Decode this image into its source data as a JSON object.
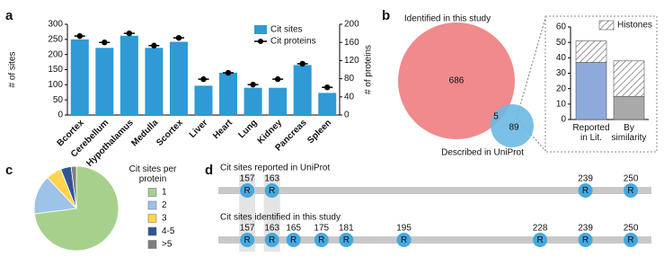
{
  "panels": [
    "a",
    "b",
    "c",
    "d"
  ],
  "chart_data": [
    {
      "type": "bar",
      "categories": [
        "Bcortex",
        "Cerebellum",
        "Hypothalamus",
        "Medulla",
        "Scortex",
        "Liver",
        "Heart",
        "Lung",
        "Kidney",
        "Pancreas",
        "Spleen"
      ],
      "series": [
        {
          "name": "Cit sites",
          "color": "#2f9ad6",
          "values": [
            250,
            222,
            262,
            222,
            242,
            97,
            140,
            90,
            90,
            165,
            73
          ]
        },
        {
          "name": "Cit proteins",
          "color": "#000000",
          "style": "dot",
          "axis": "y2",
          "values": [
            174,
            160,
            180,
            153,
            170,
            79,
            93,
            67,
            79,
            113,
            61
          ]
        }
      ],
      "ylabel": "# of sites",
      "y2label": "# of proteins",
      "ylim": [
        0,
        300
      ],
      "yticks": [
        0,
        50,
        100,
        150,
        200,
        250,
        300
      ],
      "y2lim": [
        0,
        200
      ],
      "y2ticks": [
        0,
        40,
        80,
        120,
        160,
        200
      ]
    },
    {
      "type": "venn",
      "sets": [
        {
          "name": "Identified in this study",
          "color": "#f08a8c"
        },
        {
          "name": "Described in UniProt",
          "color": "#6cb8e2"
        }
      ],
      "values": [
        686,
        5,
        89
      ]
    },
    {
      "type": "stacked_bar",
      "categories": [
        "Reported in Lit.",
        "By similarity"
      ],
      "series": [
        {
          "colors": [
            "#8eaadb",
            "#a9a9a9"
          ],
          "values": [
            37,
            15
          ]
        },
        {
          "name": "Histones",
          "pattern": "hatch",
          "color": "#ffffff",
          "values": [
            14,
            23
          ]
        }
      ],
      "ylim": [
        0,
        60
      ],
      "yticks": [
        0,
        10,
        20,
        30,
        40,
        50,
        60
      ]
    },
    {
      "type": "pie",
      "legend_title": "Cit sites per protein",
      "categories": [
        "1",
        "2",
        "3",
        "4-5",
        ">5"
      ],
      "values": [
        73,
        15,
        6,
        4,
        2
      ],
      "colors": [
        "#a8d08d",
        "#9dc3e6",
        "#ffd54f",
        "#2f5597",
        "#7f7f7f"
      ]
    },
    {
      "type": "sites",
      "residue": "R",
      "xlim": [
        150,
        255
      ],
      "highlight": [
        157,
        163
      ],
      "tracks": [
        {
          "title": "Cit sites reported in UniProt",
          "values": [
            157,
            163,
            239,
            250
          ]
        },
        {
          "title": "Cit sites identified in this study",
          "values": [
            157,
            163,
            165,
            175,
            181,
            195,
            228,
            239,
            250
          ]
        }
      ]
    }
  ]
}
